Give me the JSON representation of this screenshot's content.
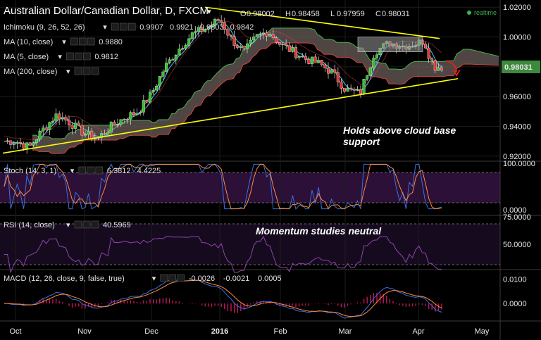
{
  "title": {
    "symbol": "Australian Dollar/Canadian Dollar, D, FXCM",
    "arrow": "▾",
    "ohlc": [
      {
        "k": "O",
        "v": "0.98002"
      },
      {
        "k": "H",
        "v": "0.98458"
      },
      {
        "k": "L",
        "v": "0.97959"
      },
      {
        "k": "C",
        "v": "0.98031"
      }
    ]
  },
  "realtime_label": "realtime",
  "price_tag": "0.98031",
  "indicators": [
    {
      "name": "Ichimoku (9, 26, 52, 26)",
      "values": [
        {
          "text": "0.9907",
          "color": "#ffff55"
        },
        {
          "text": "0.9921",
          "color": "#d84040"
        },
        {
          "text": "0.9803",
          "color": "#4caf50"
        },
        {
          "text": "0.9842",
          "color": "#d84040"
        }
      ]
    },
    {
      "name": "MA (10, close)",
      "values": [
        {
          "text": "0.9880",
          "color": "#4fc3f7"
        }
      ]
    },
    {
      "name": "MA (5, close)",
      "values": [
        {
          "text": "0.9812",
          "color": "#ffff55"
        }
      ]
    },
    {
      "name": "MA (200, close)",
      "values": []
    }
  ],
  "stoch": {
    "name": "Stoch (14, 3, 1)",
    "values": [
      {
        "text": "6.3812",
        "color": "#3d6fe0"
      },
      {
        "text": "4.4225",
        "color": "#ff8a3d"
      }
    ]
  },
  "rsi": {
    "name": "RSI (14, close)",
    "values": [
      {
        "text": "40.5969",
        "color": "#9c4fd0"
      }
    ]
  },
  "macd": {
    "name": "MACD (12, 26, close, 9, false, true)",
    "values": [
      {
        "text": "-0.0026",
        "color": "#d02040"
      },
      {
        "text": "-0.0021",
        "color": "#3d6fe0"
      },
      {
        "text": "0.0005",
        "color": "#ff8a3d"
      }
    ]
  },
  "annotations": {
    "cloud": [
      "Holds above cloud base",
      "support"
    ],
    "momentum": "Momentum studies neutral"
  },
  "chart_data": {
    "type": "candlestick",
    "x_labels": [
      "Oct",
      "Nov",
      "Dec",
      "2016",
      "Feb",
      "Mar",
      "Apr",
      "May"
    ],
    "price_axis": {
      "ticks": [
        "1.02000",
        "1.00000",
        "0.98000",
        "0.96000",
        "0.94000",
        "0.92000"
      ],
      "ylim": [
        0.918,
        1.022
      ]
    },
    "stoch_axis": {
      "ticks": [
        "100.0000",
        "0.0000"
      ],
      "ylim": [
        0,
        100
      ],
      "bands": [
        80,
        20
      ]
    },
    "rsi_axis": {
      "ticks": [
        "75.0000",
        "50.0000"
      ],
      "ylim": [
        25,
        80
      ],
      "bands": [
        70,
        30
      ]
    },
    "macd_axis": {
      "ticks": [
        "0.0100",
        "0.0000"
      ],
      "ylim": [
        -0.006,
        0.013
      ]
    },
    "price_path": [
      [
        "Oct",
        0.93
      ],
      [
        "Oct",
        0.926
      ],
      [
        "Oct",
        0.938
      ],
      [
        "Oct",
        0.948
      ],
      [
        "Oct",
        0.942
      ],
      [
        "Nov",
        0.935
      ],
      [
        "Nov",
        0.932
      ],
      [
        "Nov",
        0.94
      ],
      [
        "Nov",
        0.946
      ],
      [
        "Nov",
        0.95
      ],
      [
        "Dec",
        0.962
      ],
      [
        "Dec",
        0.98
      ],
      [
        "Dec",
        0.992
      ],
      [
        "Dec",
        1.002
      ],
      [
        "Dec",
        1.006
      ],
      [
        "2016",
        1.012
      ],
      [
        "2016",
        0.998
      ],
      [
        "2016",
        0.99
      ],
      [
        "2016",
        1.0
      ],
      [
        "2016",
        1.004
      ],
      [
        "Feb",
        0.995
      ],
      [
        "Feb",
        0.99
      ],
      [
        "Feb",
        0.985
      ],
      [
        "Feb",
        0.982
      ],
      [
        "Feb",
        0.976
      ],
      [
        "Mar",
        0.965
      ],
      [
        "Mar",
        0.962
      ],
      [
        "Mar",
        0.99
      ],
      [
        "Mar",
        0.996
      ],
      [
        "Mar",
        0.994
      ],
      [
        "Apr",
        0.996
      ],
      [
        "Apr",
        0.998
      ],
      [
        "Apr",
        0.988
      ],
      [
        "Apr",
        0.98
      ]
    ],
    "trendlines": [
      {
        "name": "upper",
        "from": [
          "Dec",
          1.02
        ],
        "to": [
          "Apr",
          0.999
        ],
        "color": "#ffff00"
      },
      {
        "name": "lower",
        "from": [
          "Oct",
          0.922
        ],
        "to": [
          "Apr",
          0.972
        ],
        "color": "#ffff00"
      }
    ]
  }
}
